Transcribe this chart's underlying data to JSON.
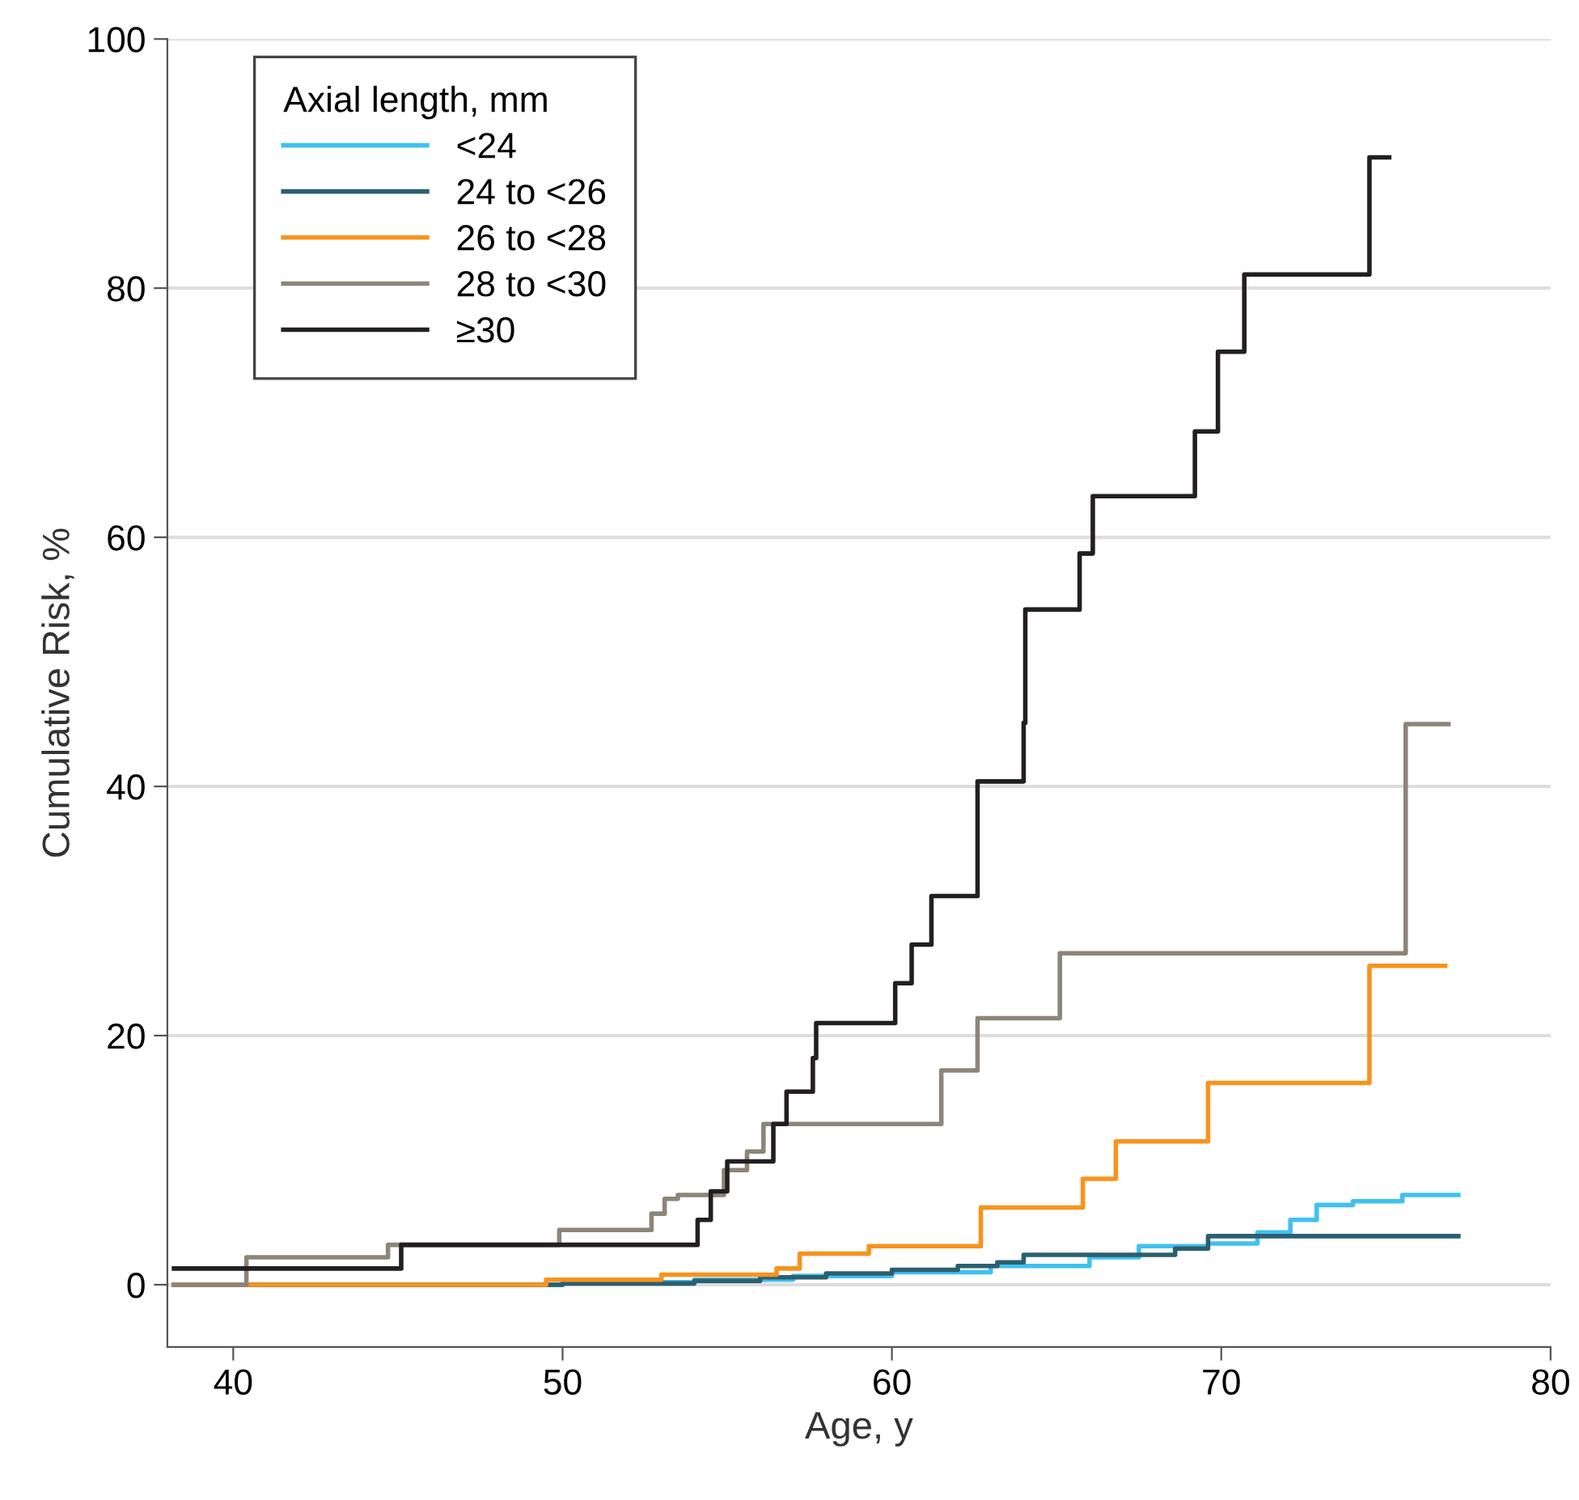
{
  "chart_data": {
    "type": "step",
    "xlabel": "Age, y",
    "ylabel": "Cumulative Risk, %",
    "legend_title": "Axial length, mm",
    "legend": "top left",
    "grid": "y",
    "xlim": [
      38,
      80
    ],
    "xticks": [
      40,
      50,
      60,
      70,
      80
    ],
    "ylim": [
      -5,
      100
    ],
    "yticks": [
      0,
      20,
      40,
      60,
      80,
      100
    ],
    "series": [
      {
        "name": "<24",
        "color": "#3fc1f0",
        "x": [
          38.2,
          50,
          54,
          57,
          60,
          63,
          66,
          67.5,
          69.6,
          71.1,
          72.1,
          72.9,
          74.0,
          75.5,
          77.2
        ],
        "values": [
          0,
          0.2,
          0.4,
          0.7,
          1.0,
          1.5,
          2.2,
          3.1,
          3.3,
          4.2,
          5.2,
          6.4,
          6.7,
          7.2,
          7.2
        ]
      },
      {
        "name": "24 to <26",
        "color": "#2b5f70",
        "x": [
          38.2,
          50,
          54,
          56,
          58,
          60,
          62,
          63.2,
          64.0,
          68.6,
          69.6,
          77.2
        ],
        "values": [
          0,
          0.1,
          0.3,
          0.6,
          0.9,
          1.2,
          1.5,
          1.8,
          2.4,
          2.9,
          3.9,
          3.9
        ]
      },
      {
        "name": "26 to <28",
        "color": "#f7931e",
        "x": [
          38.2,
          49.5,
          53,
          56.5,
          57.2,
          59.3,
          62.7,
          65.8,
          66.8,
          69.6,
          74.5,
          76.8
        ],
        "values": [
          0,
          0.4,
          0.8,
          1.3,
          2.5,
          3.1,
          6.2,
          8.5,
          11.5,
          16.2,
          25.6,
          25.6
        ]
      },
      {
        "name": "28 to <30",
        "color": "#8c8579",
        "x": [
          38.2,
          40.4,
          44.7,
          49.9,
          52.7,
          53.1,
          53.5,
          54.9,
          55.6,
          56.1,
          61.5,
          62.6,
          65.1,
          75.6,
          76.9
        ],
        "values": [
          0,
          2.2,
          3.2,
          4.4,
          5.7,
          6.9,
          7.2,
          9.2,
          10.7,
          12.9,
          17.2,
          21.4,
          26.6,
          45.0,
          45.0
        ]
      },
      {
        "name": "≥30",
        "color": "#231f20",
        "x": [
          38.2,
          45.1,
          54.1,
          54.5,
          55.0,
          56.4,
          56.8,
          57.6,
          57.7,
          60.1,
          60.6,
          61.2,
          62.6,
          64.0,
          64.05,
          65.7,
          66.1,
          69.2,
          69.9,
          70.7,
          74.5,
          75.1
        ],
        "values": [
          1.3,
          3.2,
          5.2,
          7.5,
          9.9,
          12.9,
          15.5,
          18.2,
          21.0,
          24.2,
          27.3,
          31.2,
          40.4,
          45.1,
          54.2,
          58.7,
          63.3,
          68.5,
          74.9,
          81.1,
          90.5,
          90.5
        ]
      }
    ]
  }
}
